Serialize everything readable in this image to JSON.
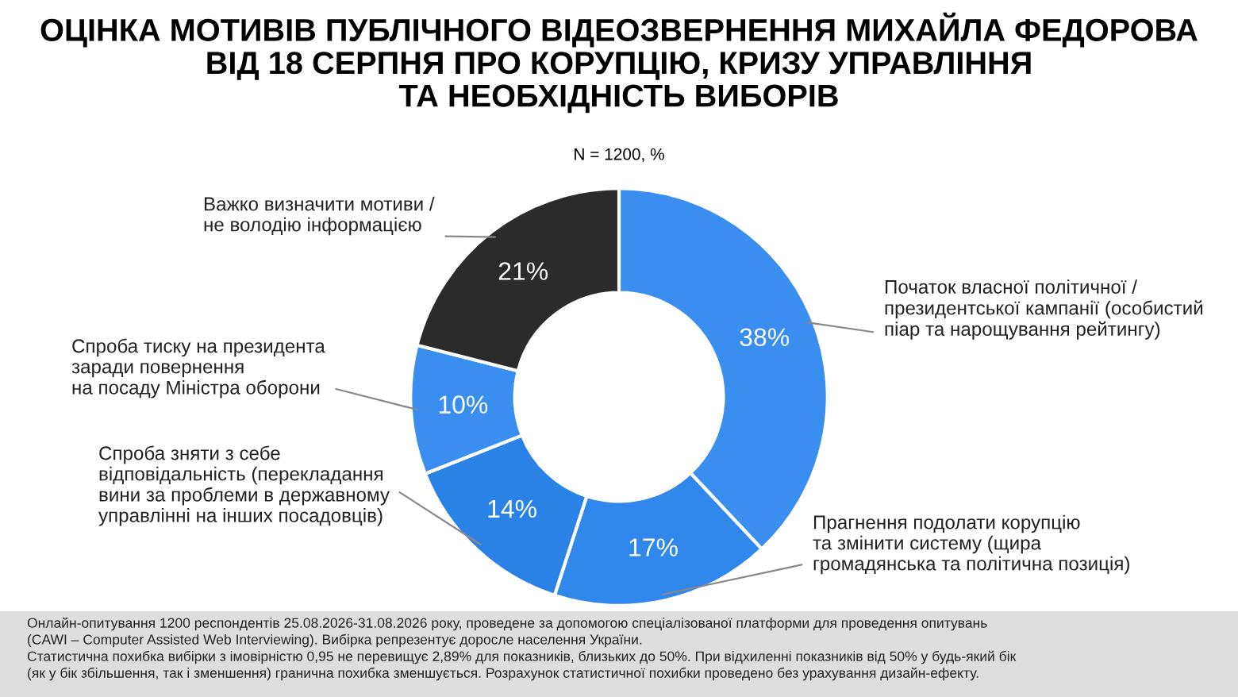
{
  "chart_data": {
    "type": "donut",
    "title": "ОЦІНКА МОТИВІВ ПУБЛІЧНОГО ВІДЕОЗВЕРНЕННЯ МИХАЙЛА ФЕДОРОВА\nВІД 18 СЕРПНЯ ПРО КОРУПЦІЮ, КРИЗУ УПРАВЛІННЯ\nТА НЕОБХІДНІСТЬ ВИБОРІВ",
    "subtitle": "N = 1200, %",
    "categories": [
      "Початок власної політичної /\nпрезидентської кампанії (особистий\nпіар та нарощування рейтингу)",
      "Прагнення подолати корупцію\nта змінити систему (щира\nгромадянська та політична позиція)",
      "Спроба зняти з себе\nвідповідальність (перекладання\nвини за проблеми в державному\nуправлінні на інших посадовців)",
      "Спроба тиску на президента\nзаради повернення\nна посаду Міністра оборони",
      "Важко визначити мотиви /\nне володію інформацією"
    ],
    "values": [
      38,
      17,
      14,
      10,
      21
    ],
    "colors": [
      "#3a8ef0",
      "#3088ec",
      "#2b82e6",
      "#3a8ef0",
      "#2b2b2b"
    ],
    "value_labels": [
      "38%",
      "17%",
      "14%",
      "10%",
      "21%"
    ],
    "annotations": [
      "Онлайн-опитування 1200 респондентів 25.08.2026-31.08.2026 року, проведене за допомогою спеціалізованої платформи для проведення опитувань",
      "(CAWI – Computer Assisted Web Interviewing). Вибірка репрезентує доросле населення України.",
      "Статистична похибка вибірки з імовірністю 0,95 не перевищує 2,89% для показників, близьких до 50%. При відхиленні показників від 50% у будь-який бік",
      "(як у бік збільшення, так і зменшення) гранична похибка зменшується. Розрахунок статистичної похибки проведено без урахування дизайн-ефекту."
    ]
  }
}
